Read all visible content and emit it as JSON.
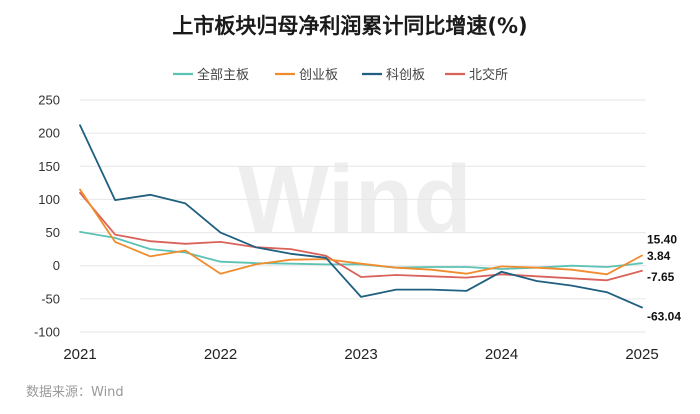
{
  "source_text": "数据来源：Wind",
  "watermark": "Wind",
  "chart_data": {
    "type": "line",
    "title": "上市板块归母净利润累计同比增速(%)",
    "xlabel": "",
    "ylabel": "",
    "ylim": [
      -100,
      250
    ],
    "y_ticks": [
      250,
      200,
      150,
      100,
      50,
      0,
      -50,
      -100
    ],
    "x_range": [
      2021,
      2025
    ],
    "x_ticks": [
      "2021",
      "2022",
      "2023",
      "2024",
      "2025"
    ],
    "x_tick_values": [
      2021,
      2022,
      2023,
      2024,
      2025
    ],
    "grid": true,
    "legend_position": "top-center",
    "x": [
      2021.0,
      2021.25,
      2021.5,
      2021.75,
      2022.0,
      2022.25,
      2022.5,
      2022.75,
      2023.0,
      2023.25,
      2023.5,
      2023.75,
      2024.0,
      2024.25,
      2024.5,
      2024.75,
      2025.0
    ],
    "series": [
      {
        "name": "全部主板",
        "color": "#5bc2b4",
        "values": [
          51,
          42,
          25,
          20,
          6,
          4,
          3,
          2,
          2,
          -3,
          -2,
          -2,
          -5,
          -3,
          0,
          -2,
          3.84
        ],
        "end_label": "3.84"
      },
      {
        "name": "创业板",
        "color": "#f08c2e",
        "values": [
          115,
          36,
          14,
          23,
          -12,
          2,
          9,
          10,
          3,
          -3,
          -6,
          -12,
          -1,
          -3,
          -6,
          -13,
          15.4
        ],
        "end_label": "15.40"
      },
      {
        "name": "科创板",
        "color": "#1f5f7f",
        "values": [
          212,
          99,
          107,
          94,
          50,
          28,
          18,
          12,
          -47,
          -36,
          -36,
          -38,
          -9,
          -23,
          -30,
          -40,
          -63.04
        ],
        "end_label": "-63.04"
      },
      {
        "name": "北交所",
        "color": "#d9625a",
        "values": [
          110,
          47,
          37,
          33,
          36,
          28,
          25,
          15,
          -17,
          -14,
          -16,
          -18,
          -13,
          -16,
          -19,
          -22,
          -7.65
        ],
        "end_label": "-7.65"
      }
    ]
  }
}
